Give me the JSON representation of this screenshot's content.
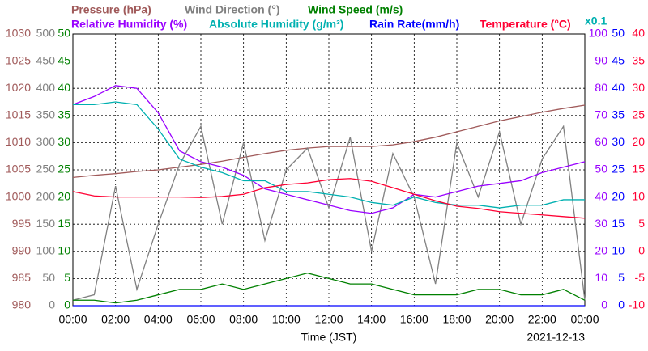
{
  "chart_data": {
    "type": "line",
    "x": [
      0,
      1,
      2,
      3,
      4,
      5,
      6,
      7,
      8,
      9,
      10,
      11,
      12,
      13,
      14,
      15,
      16,
      17,
      18,
      19,
      20,
      21,
      22,
      23,
      24
    ],
    "xlim": [
      0,
      24
    ],
    "xticks": [
      {
        "value": 0,
        "label": "00:00"
      },
      {
        "value": 2,
        "label": "02:00"
      },
      {
        "value": 4,
        "label": "04:00"
      },
      {
        "value": 6,
        "label": "06:00"
      },
      {
        "value": 8,
        "label": "08:00"
      },
      {
        "value": 10,
        "label": "10:00"
      },
      {
        "value": 12,
        "label": "12:00"
      },
      {
        "value": 14,
        "label": "14:00"
      },
      {
        "value": 16,
        "label": "16:00"
      },
      {
        "value": 18,
        "label": "18:00"
      },
      {
        "value": 20,
        "label": "20:00"
      },
      {
        "value": 22,
        "label": "22:00"
      },
      {
        "value": 24,
        "label": "00:00"
      }
    ],
    "xlabel": "Time (JST)",
    "date": "2021-12-13",
    "scale_note": "x0.1",
    "scale_note_color": "#00b0b0",
    "grid": true,
    "axes": [
      {
        "lim": [
          980,
          1030
        ],
        "ticks": [
          980,
          985,
          990,
          995,
          1000,
          1005,
          1010,
          1015,
          1020,
          1025,
          1030
        ],
        "color": "#a05a5a",
        "side": "left"
      },
      {
        "lim": [
          0,
          500
        ],
        "ticks": [
          0,
          50,
          100,
          150,
          200,
          250,
          300,
          350,
          400,
          450,
          500
        ],
        "color": "#808080",
        "side": "left"
      },
      {
        "lim": [
          0,
          50
        ],
        "ticks": [
          0,
          5,
          10,
          15,
          20,
          25,
          30,
          35,
          40,
          45,
          50
        ],
        "color": "#008000",
        "side": "left"
      },
      {
        "lim": [
          0,
          100
        ],
        "ticks": [
          0,
          10,
          20,
          30,
          40,
          50,
          60,
          70,
          80,
          90,
          100
        ],
        "color": "#9900ff",
        "side": "right"
      },
      {
        "lim": [
          0,
          50
        ],
        "ticks": [
          0,
          5,
          10,
          15,
          20,
          25,
          30,
          35,
          40,
          45,
          50
        ],
        "color": "#0000ff",
        "side": "right"
      },
      {
        "lim": [
          -10,
          40
        ],
        "ticks": [
          -10,
          -5,
          0,
          5,
          10,
          15,
          20,
          25,
          30,
          35,
          40
        ],
        "color": "#ff0033",
        "side": "right"
      }
    ],
    "series": [
      {
        "name": "Pressure (hPa)",
        "color": "#a05a5a",
        "axis": 0,
        "values": [
          1003.6,
          1004,
          1004.3,
          1004.7,
          1005,
          1005.5,
          1006,
          1006.6,
          1007.3,
          1008,
          1008.6,
          1009,
          1009.3,
          1009.3,
          1009.3,
          1009.6,
          1010.2,
          1011,
          1012,
          1013,
          1014,
          1014.8,
          1015.6,
          1016.3,
          1016.9
        ]
      },
      {
        "name": "Wind Direction (°)",
        "color": "#808080",
        "axis": 1,
        "values": [
          10,
          20,
          220,
          30,
          150,
          260,
          330,
          150,
          300,
          120,
          250,
          290,
          180,
          310,
          100,
          280,
          200,
          40,
          300,
          200,
          320,
          150,
          270,
          330,
          10
        ]
      },
      {
        "name": "Wind Speed (m/s)",
        "color": "#008000",
        "axis": 2,
        "values": [
          1,
          1,
          0.5,
          1,
          2,
          3,
          3,
          4,
          3,
          4,
          5,
          6,
          5,
          4,
          4,
          3,
          2,
          2,
          2,
          3,
          3,
          2,
          2,
          3,
          1
        ]
      },
      {
        "name": "Relative Humidity (%)",
        "color": "#9900ff",
        "axis": 3,
        "values": [
          74,
          77,
          81,
          80,
          71,
          57,
          53,
          51,
          48,
          43,
          41,
          39,
          37,
          35,
          34,
          36,
          41,
          40,
          42,
          44,
          45,
          46,
          49,
          51,
          53
        ]
      },
      {
        "name": "Absolute Humidity (g/m³)",
        "color": "#00b0b0",
        "axis": 3,
        "values": [
          74,
          74,
          75,
          74,
          65,
          54,
          51,
          49,
          46,
          46,
          42,
          42,
          41,
          40,
          38,
          37,
          40,
          38,
          37,
          37,
          36,
          37,
          37,
          39,
          39
        ]
      },
      {
        "name": "Rain Rate(mm/h)",
        "color": "#0000ff",
        "axis": 4,
        "values": [
          0,
          0,
          0,
          0,
          0,
          0,
          0,
          0,
          0,
          0,
          0,
          0,
          0,
          0,
          0,
          0,
          0,
          0,
          0,
          0,
          0,
          0,
          0,
          0,
          0
        ]
      },
      {
        "name": "Temperature (°C)",
        "color": "#ff0033",
        "axis": 5,
        "values": [
          11,
          10.2,
          10,
          10,
          10,
          10,
          9.9,
          10.1,
          10.5,
          11.7,
          12.3,
          12.6,
          13.2,
          13.4,
          12.9,
          11.7,
          10.5,
          9.3,
          8.3,
          7.9,
          7.3,
          7,
          6.7,
          6.4,
          6.1
        ]
      }
    ]
  }
}
